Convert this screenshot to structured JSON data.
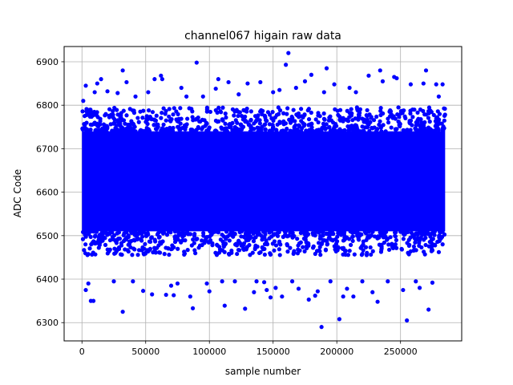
{
  "chart_data": {
    "type": "scatter",
    "title": "channel067 higain raw data",
    "xlabel": "sample number",
    "ylabel": "ADC Code",
    "xlim": [
      -14000,
      298000
    ],
    "ylim": [
      6258,
      6935
    ],
    "x_ticks": [
      0,
      50000,
      100000,
      150000,
      200000,
      250000
    ],
    "x_tick_labels": [
      "0",
      "50000",
      "100000",
      "150000",
      "200000",
      "250000"
    ],
    "y_ticks": [
      6300,
      6400,
      6500,
      6600,
      6700,
      6800,
      6900
    ],
    "y_tick_labels": [
      "6300",
      "6400",
      "6500",
      "6600",
      "6700",
      "6800",
      "6900"
    ],
    "grid": true,
    "marker_color": "#0000ff",
    "series": [
      {
        "x_range": [
          0,
          285000
        ],
        "dense_band": [
          6470,
          6780
        ],
        "points": [
          [
            1000,
            6810
          ],
          [
            3000,
            6845
          ],
          [
            3000,
            6375
          ],
          [
            5000,
            6390
          ],
          [
            7000,
            6350
          ],
          [
            9000,
            6350
          ],
          [
            10000,
            6830
          ],
          [
            12000,
            6850
          ],
          [
            15000,
            6860
          ],
          [
            20000,
            6832
          ],
          [
            25000,
            6395
          ],
          [
            28000,
            6828
          ],
          [
            32000,
            6880
          ],
          [
            32000,
            6325
          ],
          [
            35000,
            6853
          ],
          [
            40000,
            6395
          ],
          [
            42000,
            6820
          ],
          [
            48000,
            6373
          ],
          [
            52000,
            6830
          ],
          [
            55000,
            6365
          ],
          [
            57000,
            6860
          ],
          [
            62000,
            6868
          ],
          [
            63000,
            6860
          ],
          [
            66000,
            6364
          ],
          [
            70000,
            6385
          ],
          [
            72000,
            6363
          ],
          [
            75000,
            6390
          ],
          [
            78000,
            6840
          ],
          [
            82000,
            6820
          ],
          [
            85000,
            6360
          ],
          [
            87000,
            6333
          ],
          [
            90000,
            6898
          ],
          [
            95000,
            6820
          ],
          [
            98000,
            6390
          ],
          [
            100000,
            6372
          ],
          [
            105000,
            6838
          ],
          [
            107000,
            6860
          ],
          [
            110000,
            6395
          ],
          [
            112000,
            6339
          ],
          [
            115000,
            6853
          ],
          [
            120000,
            6395
          ],
          [
            123000,
            6825
          ],
          [
            128000,
            6332
          ],
          [
            130000,
            6850
          ],
          [
            135000,
            6370
          ],
          [
            137000,
            6395
          ],
          [
            140000,
            6853
          ],
          [
            143000,
            6393
          ],
          [
            145000,
            6375
          ],
          [
            148000,
            6358
          ],
          [
            150000,
            6830
          ],
          [
            152000,
            6380
          ],
          [
            155000,
            6835
          ],
          [
            157000,
            6360
          ],
          [
            160000,
            6893
          ],
          [
            162000,
            6920
          ],
          [
            165000,
            6395
          ],
          [
            168000,
            6840
          ],
          [
            170000,
            6378
          ],
          [
            175000,
            6855
          ],
          [
            178000,
            6353
          ],
          [
            180000,
            6870
          ],
          [
            183000,
            6362
          ],
          [
            185000,
            6372
          ],
          [
            188000,
            6290
          ],
          [
            190000,
            6830
          ],
          [
            192000,
            6885
          ],
          [
            195000,
            6395
          ],
          [
            198000,
            6848
          ],
          [
            202000,
            6308
          ],
          [
            205000,
            6360
          ],
          [
            208000,
            6378
          ],
          [
            210000,
            6840
          ],
          [
            213000,
            6360
          ],
          [
            215000,
            6830
          ],
          [
            220000,
            6395
          ],
          [
            225000,
            6868
          ],
          [
            228000,
            6370
          ],
          [
            232000,
            6348
          ],
          [
            234000,
            6880
          ],
          [
            236000,
            6855
          ],
          [
            240000,
            6395
          ],
          [
            245000,
            6865
          ],
          [
            247000,
            6862
          ],
          [
            252000,
            6375
          ],
          [
            255000,
            6305
          ],
          [
            258000,
            6848
          ],
          [
            262000,
            6395
          ],
          [
            265000,
            6380
          ],
          [
            268000,
            6850
          ],
          [
            270000,
            6880
          ],
          [
            272000,
            6330
          ],
          [
            275000,
            6392
          ],
          [
            278000,
            6848
          ],
          [
            280000,
            6820
          ],
          [
            283000,
            6848
          ]
        ]
      }
    ]
  }
}
